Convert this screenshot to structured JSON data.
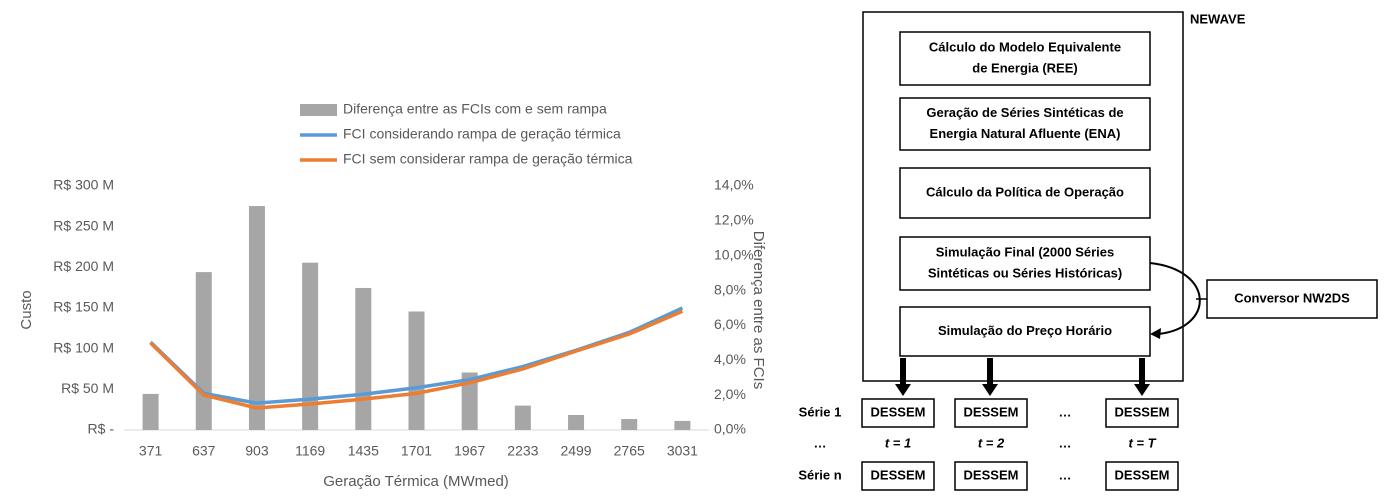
{
  "chart_data": {
    "type": "bar_line",
    "xlabel": "Geração Térmica (MWmed)",
    "ylabel": "Custo",
    "y2label": "Diferença entre as FCIs",
    "categories": [
      "371",
      "637",
      "903",
      "1169",
      "1435",
      "1701",
      "1967",
      "2233",
      "2499",
      "2765",
      "3031"
    ],
    "series": [
      {
        "name": "Diferença entre as FCIs com e sem rampa",
        "type": "bar",
        "axis": "y2",
        "color": "#a6a6a6",
        "values": [
          2.07,
          9.06,
          12.85,
          9.6,
          8.15,
          6.8,
          3.3,
          1.4,
          0.86,
          0.63,
          0.52
        ]
      },
      {
        "name": "FCI considerando rampa de geração térmica",
        "type": "line",
        "color": "#5b9bd5",
        "values": [
          108,
          45,
          33,
          38,
          44,
          52,
          62,
          78,
          98,
          120,
          150
        ]
      },
      {
        "name": "FCI sem considerar rampa de geração térmica",
        "type": "line",
        "color": "#ed7d31",
        "values": [
          107,
          43,
          27,
          32,
          38,
          45,
          58,
          75,
          97,
          118,
          146
        ]
      }
    ],
    "ylim": [
      0,
      300
    ],
    "yticks": [
      {
        "value": 0,
        "label": "R$ -"
      },
      {
        "value": 50,
        "label": "R$ 50 M"
      },
      {
        "value": 100,
        "label": "R$ 100 M"
      },
      {
        "value": 150,
        "label": "R$ 150 M"
      },
      {
        "value": 200,
        "label": "R$ 200 M"
      },
      {
        "value": 250,
        "label": "R$ 250 M"
      },
      {
        "value": 300,
        "label": "R$ 300 M"
      }
    ],
    "y2lim": [
      0,
      14
    ],
    "y2ticks": [
      {
        "value": 0,
        "label": "0,0%"
      },
      {
        "value": 2,
        "label": "2,0%"
      },
      {
        "value": 4,
        "label": "4,0%"
      },
      {
        "value": 6,
        "label": "6,0%"
      },
      {
        "value": 8,
        "label": "8,0%"
      },
      {
        "value": 10,
        "label": "10,0%"
      },
      {
        "value": 12,
        "label": "12,0%"
      },
      {
        "value": 14,
        "label": "14,0%"
      }
    ],
    "legend": "top"
  },
  "diagram": {
    "title": "NEWAVE",
    "boxes": [
      [
        "Cálculo do Modelo Equivalente",
        "de Energia (REE)"
      ],
      [
        "Geração de Séries Sintéticas de",
        "Energia Natural Afluente (ENA)"
      ],
      [
        "Cálculo da Política de Operação"
      ],
      [
        "Simulação Final (2000 Séries",
        "Sintéticas ou Séries Históricas)"
      ],
      [
        "Simulação do Preço Horário"
      ]
    ],
    "converter": "Conversor NW2DS",
    "row_labels": [
      "Série 1",
      "…",
      "Série n"
    ],
    "grid": [
      [
        "DESSEM",
        "DESSEM",
        "…",
        "DESSEM"
      ],
      [
        "t = 1",
        "t = 2",
        "…",
        "t = T"
      ],
      [
        "DESSEM",
        "DESSEM",
        "…",
        "DESSEM"
      ]
    ]
  }
}
